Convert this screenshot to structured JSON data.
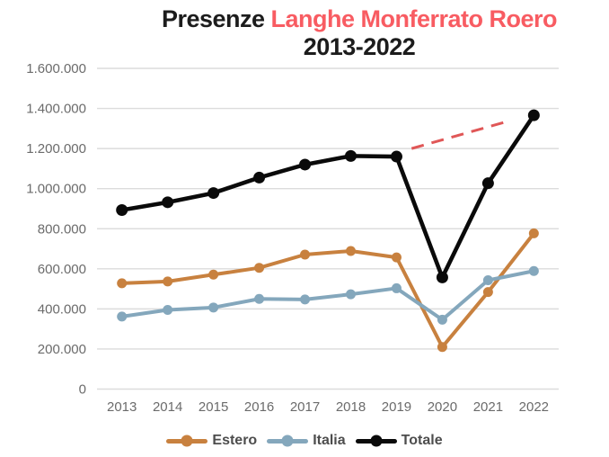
{
  "title": {
    "black": "Presenze",
    "red": "Langhe Monferrato Roero",
    "line2": "2013-2022"
  },
  "colors": {
    "background": "#ffffff",
    "title_black": "#1c1c1c",
    "title_red": "#f85c62",
    "gridline": "#dcdcdc",
    "axis_text": "#6b6b6b",
    "legend_text": "#4d4d4d",
    "estero": "#c8813f",
    "italia": "#84a7bc",
    "totale": "#0a0a0a",
    "trend": "#e05757"
  },
  "chart_data": {
    "type": "line",
    "title": "Presenze Langhe Monferrato Roero 2013-2022",
    "categories": [
      "2013",
      "2014",
      "2015",
      "2016",
      "2017",
      "2018",
      "2019",
      "2020",
      "2021",
      "2022"
    ],
    "series": [
      {
        "name": "Estero",
        "color": "#c8813f",
        "values": [
          528000,
          537000,
          571000,
          605000,
          671000,
          689000,
          657000,
          210000,
          484000,
          777000
        ]
      },
      {
        "name": "Italia",
        "color": "#84a7bc",
        "values": [
          362000,
          395000,
          407000,
          450000,
          447000,
          473000,
          503000,
          346000,
          543000,
          589000
        ]
      },
      {
        "name": "Totale",
        "color": "#0a0a0a",
        "values": [
          893000,
          932000,
          978000,
          1055000,
          1120000,
          1163000,
          1160000,
          557000,
          1027000,
          1366000
        ]
      }
    ],
    "y_ticks": {
      "values": [
        0,
        200000,
        400000,
        600000,
        800000,
        1000000,
        1200000,
        1400000,
        1600000
      ],
      "labels": [
        "0",
        "200.000",
        "400.000",
        "600.000",
        "800.000",
        "1.000.000",
        "1.200.000",
        "1.400.000",
        "1.600.000"
      ]
    },
    "ylim": [
      0,
      1600000
    ],
    "grid": true,
    "legend_position": "bottom",
    "trend_line": {
      "color": "#e05757",
      "style": "dashed",
      "start": {
        "year": 2019.33,
        "value": 1200000
      },
      "end": {
        "year": 2021.37,
        "value": 1332000
      }
    }
  }
}
